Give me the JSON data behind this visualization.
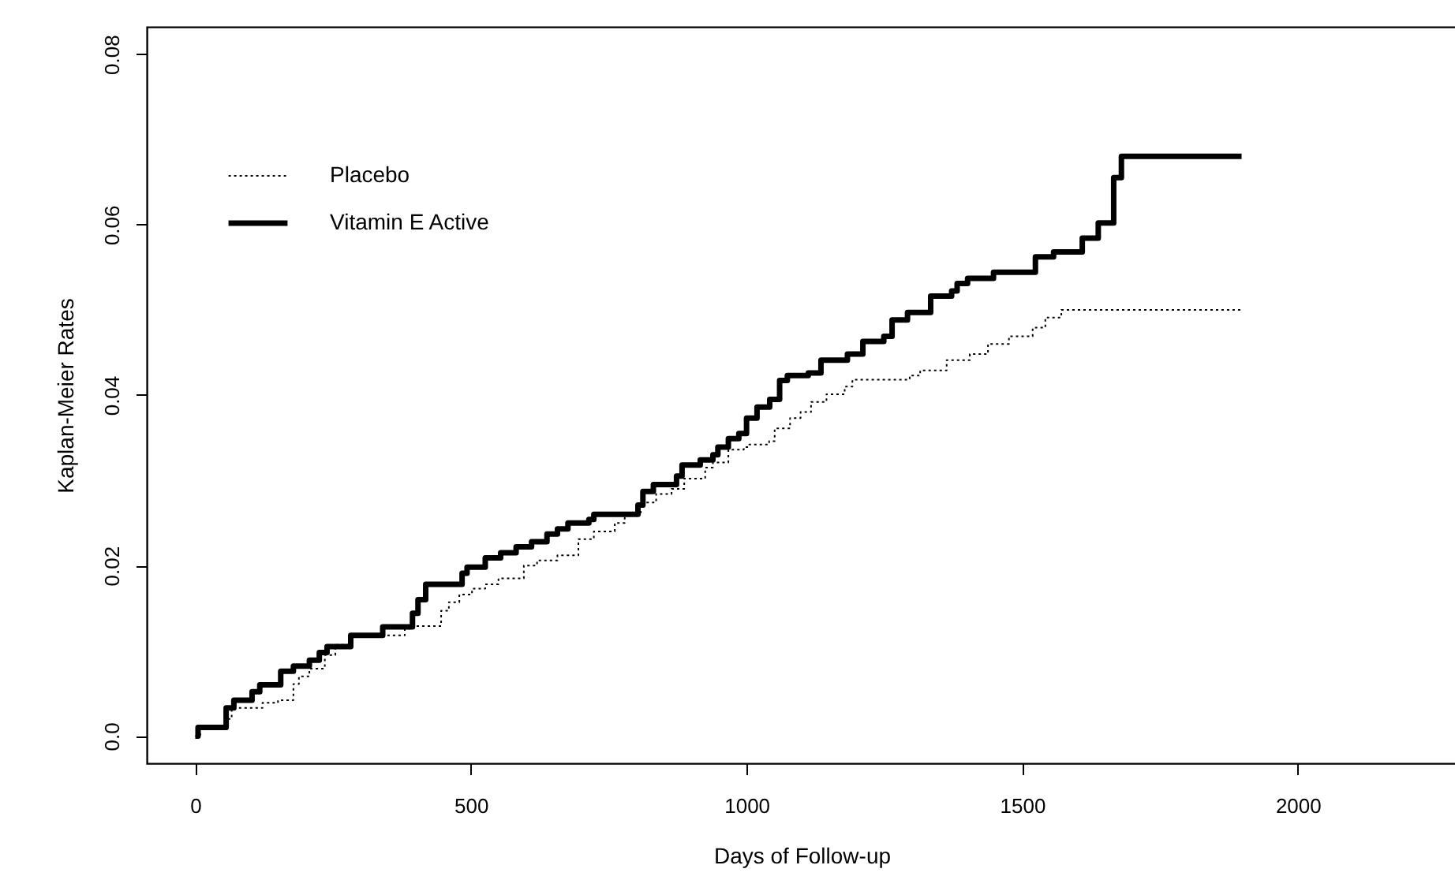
{
  "chart_data": {
    "type": "step",
    "xlabel": "Days of Follow-up",
    "ylabel": "Kaplan-Meier Rates",
    "xlim": [
      -88,
      2288
    ],
    "xticks": [
      0,
      500,
      1000,
      1500,
      2000
    ],
    "ylim": [
      -0.0032,
      0.0832
    ],
    "yticks": [
      {
        "value": 0,
        "label": "0.0"
      },
      0.02,
      0.04,
      0.06,
      0.08
    ],
    "grid": false,
    "legend": "top left",
    "marker": "none",
    "series": [
      {
        "name": "Placebo",
        "color": "#000000",
        "line_style": "dotted",
        "x": [
          0,
          9,
          56,
          66,
          122,
          150,
          178,
          188,
          207,
          235,
          254,
          282,
          333,
          380,
          394,
          446,
          460,
          479,
          502,
          526,
          550,
          596,
          620,
          657,
          695,
          723,
          761,
          779,
          808,
          836,
          864,
          887,
          925,
          939,
          967,
          995,
          1005,
          1041,
          1051,
          1079,
          1098,
          1117,
          1145,
          1178,
          1192,
          1296,
          1315,
          1363,
          1405,
          1438,
          1476,
          1519,
          1542,
          1571,
          1898
        ],
        "values": [
          0,
          0.001,
          0.002,
          0.0033,
          0.0039,
          0.0042,
          0.0061,
          0.007,
          0.0079,
          0.0095,
          0.0107,
          0.0116,
          0.0118,
          0.0126,
          0.0129,
          0.0147,
          0.0157,
          0.0166,
          0.0173,
          0.0178,
          0.0185,
          0.02,
          0.0206,
          0.0212,
          0.0231,
          0.024,
          0.025,
          0.026,
          0.0274,
          0.0284,
          0.029,
          0.0302,
          0.0315,
          0.0321,
          0.0336,
          0.0339,
          0.0342,
          0.0346,
          0.0361,
          0.0373,
          0.038,
          0.0392,
          0.0401,
          0.041,
          0.0418,
          0.0423,
          0.0429,
          0.0441,
          0.0448,
          0.046,
          0.0469,
          0.0479,
          0.0491,
          0.05,
          0.05
        ]
      },
      {
        "name": "Vitamin E Active",
        "color": "#000000",
        "line_style": "solid",
        "x": [
          0,
          5,
          56,
          70,
          103,
          117,
          155,
          178,
          207,
          225,
          239,
          282,
          340,
          394,
          404,
          418,
          484,
          493,
          526,
          554,
          582,
          610,
          638,
          657,
          676,
          714,
          723,
          803,
          812,
          831,
          873,
          883,
          916,
          939,
          948,
          967,
          986,
          1000,
          1019,
          1042,
          1060,
          1074,
          1112,
          1135,
          1183,
          1211,
          1249,
          1264,
          1292,
          1334,
          1372,
          1382,
          1401,
          1448,
          1524,
          1557,
          1609,
          1638,
          1666,
          1680,
          1898
        ],
        "values": [
          0,
          0.001,
          0.0033,
          0.0042,
          0.0052,
          0.006,
          0.0076,
          0.0082,
          0.0089,
          0.0098,
          0.0105,
          0.0118,
          0.0128,
          0.0144,
          0.016,
          0.0178,
          0.0191,
          0.0198,
          0.0209,
          0.0215,
          0.0222,
          0.0228,
          0.0237,
          0.0243,
          0.025,
          0.0254,
          0.026,
          0.0271,
          0.0287,
          0.0295,
          0.0305,
          0.0318,
          0.0324,
          0.033,
          0.0339,
          0.0349,
          0.0355,
          0.0373,
          0.0386,
          0.0395,
          0.0417,
          0.0423,
          0.0426,
          0.0441,
          0.0448,
          0.0463,
          0.0469,
          0.0488,
          0.0497,
          0.0516,
          0.0522,
          0.0531,
          0.0537,
          0.0544,
          0.0562,
          0.0568,
          0.0584,
          0.0602,
          0.0655,
          0.068,
          0.068
        ]
      }
    ]
  }
}
